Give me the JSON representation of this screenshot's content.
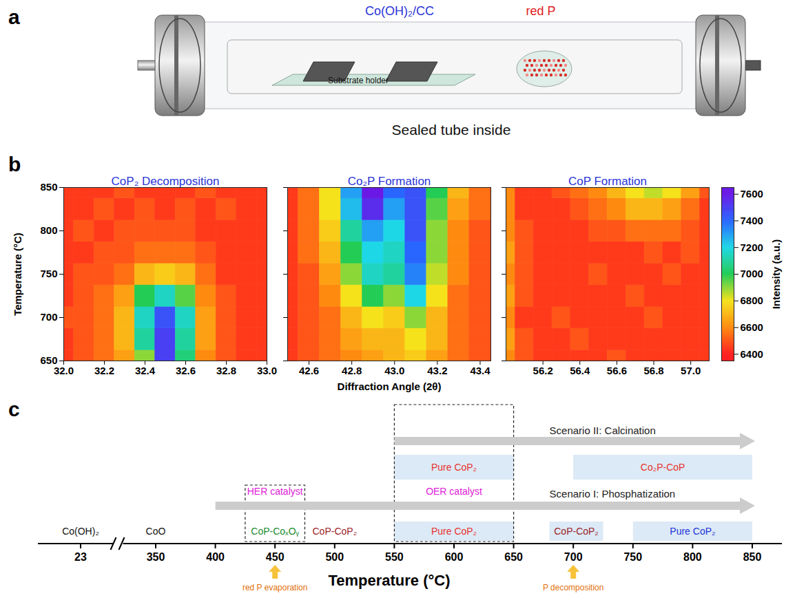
{
  "panel_letters": [
    "a",
    "b",
    "c"
  ],
  "illustration": {
    "sample_label": "Co(OH)₂/CC",
    "source_label": "red P",
    "holder_label": "Substrate holder",
    "caption": "Sealed tube inside"
  },
  "chart_data": [
    {
      "type": "heatmap",
      "title": "CoP₂ Decomposition",
      "y_label": "Temperature (°C)",
      "x": [
        32,
        32.1,
        32.2,
        32.3,
        32.4,
        32.5,
        32.6,
        32.7,
        32.8,
        32.9,
        33
      ],
      "y": [
        650,
        675,
        700,
        725,
        750,
        775,
        800,
        825,
        850
      ],
      "values": [
        [
          6450,
          6500,
          6550,
          6650,
          6900,
          7500,
          7050,
          6600,
          6500,
          6450,
          6450
        ],
        [
          6450,
          6500,
          6550,
          6700,
          7100,
          7500,
          7100,
          6650,
          6500,
          6450,
          6450
        ],
        [
          6500,
          6500,
          6550,
          6700,
          7150,
          7450,
          7150,
          6650,
          6500,
          6450,
          6450
        ],
        [
          6450,
          6500,
          6550,
          6650,
          7000,
          7150,
          6950,
          6600,
          6500,
          6450,
          6450
        ],
        [
          6450,
          6500,
          6500,
          6550,
          6700,
          6750,
          6700,
          6550,
          6450,
          6450,
          6450
        ],
        [
          6450,
          6450,
          6500,
          6500,
          6550,
          6550,
          6550,
          6500,
          6450,
          6450,
          6450
        ],
        [
          6450,
          6500,
          6450,
          6500,
          6500,
          6500,
          6500,
          6450,
          6450,
          6450,
          6450
        ],
        [
          6450,
          6450,
          6500,
          6450,
          6500,
          6450,
          6500,
          6450,
          6500,
          6450,
          6450
        ],
        [
          6450,
          6450,
          6450,
          6500,
          6450,
          6450,
          6450,
          6500,
          6450,
          6450,
          6450
        ]
      ],
      "xlim": [
        32,
        33
      ],
      "ylim": [
        650,
        850
      ],
      "xticks": [
        {
          "value": 32,
          "label": "32.0"
        },
        32.2,
        32.4,
        32.6,
        32.8,
        {
          "value": 33,
          "label": "33.0"
        }
      ],
      "yticks": [
        650,
        700,
        750,
        800,
        850
      ]
    },
    {
      "type": "heatmap",
      "title": "Co₂P Formation",
      "x_label": "Diffraction Angle (2θ)",
      "tick_labels": "x",
      "x": [
        42.5,
        42.6,
        42.7,
        42.8,
        42.9,
        43,
        43.1,
        43.2,
        43.3,
        43.4,
        43.5
      ],
      "y": [
        650,
        675,
        700,
        725,
        750,
        775,
        800,
        825,
        850
      ],
      "values": [
        [
          6450,
          6500,
          6550,
          6600,
          6650,
          6700,
          6750,
          6650,
          6550,
          6500,
          6450
        ],
        [
          6450,
          6500,
          6550,
          6650,
          6700,
          6700,
          6800,
          6700,
          6550,
          6500,
          6450
        ],
        [
          6450,
          6500,
          6550,
          6700,
          6800,
          6750,
          6900,
          6700,
          6550,
          6500,
          6450
        ],
        [
          6450,
          6500,
          6600,
          6800,
          7000,
          6900,
          7200,
          6800,
          6550,
          6500,
          6450
        ],
        [
          6450,
          6500,
          6650,
          6900,
          7150,
          7100,
          7350,
          6850,
          6600,
          6500,
          6450
        ],
        [
          6450,
          6550,
          6700,
          7000,
          7200,
          7150,
          7400,
          6900,
          6600,
          6500,
          6450
        ],
        [
          6450,
          6550,
          6750,
          7100,
          7300,
          7200,
          7450,
          6900,
          6600,
          6500,
          6450
        ],
        [
          6450,
          6550,
          6800,
          7250,
          7550,
          7300,
          7450,
          6950,
          6650,
          6550,
          6450
        ],
        [
          6450,
          6550,
          6800,
          7300,
          7650,
          7400,
          7450,
          7000,
          6700,
          6550,
          6450
        ]
      ],
      "xlim": [
        42.5,
        43.45
      ],
      "ylim": [
        650,
        850
      ],
      "xticks": [
        42.6,
        42.8,
        {
          "value": 43,
          "label": "43.0"
        },
        43.2,
        43.4
      ],
      "yticks": [
        650,
        700,
        750,
        800,
        850
      ]
    },
    {
      "type": "heatmap",
      "title": "CoP Formation",
      "tick_labels": "x",
      "x": [
        56,
        56.1,
        56.2,
        56.3,
        56.4,
        56.5,
        56.6,
        56.7,
        56.8,
        56.9,
        57,
        57.1
      ],
      "y": [
        650,
        675,
        700,
        725,
        750,
        775,
        800,
        825,
        850
      ],
      "values": [
        [
          6600,
          6500,
          6450,
          6450,
          6450,
          6450,
          6500,
          6450,
          6450,
          6450,
          6450,
          6450
        ],
        [
          6650,
          6500,
          6450,
          6450,
          6500,
          6450,
          6450,
          6450,
          6450,
          6450,
          6450,
          6450
        ],
        [
          6600,
          6450,
          6450,
          6500,
          6450,
          6450,
          6450,
          6450,
          6500,
          6450,
          6450,
          6450
        ],
        [
          6650,
          6500,
          6450,
          6450,
          6450,
          6450,
          6450,
          6500,
          6450,
          6450,
          6450,
          6450
        ],
        [
          6600,
          6500,
          6450,
          6450,
          6450,
          6500,
          6450,
          6450,
          6450,
          6500,
          6450,
          6450
        ],
        [
          6650,
          6500,
          6450,
          6450,
          6450,
          6450,
          6450,
          6450,
          6500,
          6450,
          6500,
          6450
        ],
        [
          6600,
          6500,
          6450,
          6450,
          6450,
          6500,
          6500,
          6550,
          6550,
          6550,
          6500,
          6450
        ],
        [
          6600,
          6450,
          6450,
          6450,
          6500,
          6550,
          6600,
          6700,
          6700,
          6650,
          6550,
          6450
        ],
        [
          6600,
          6450,
          6450,
          6500,
          6550,
          6600,
          6700,
          6800,
          6850,
          6800,
          6650,
          6500
        ]
      ],
      "xlim": [
        56,
        57.1
      ],
      "ylim": [
        650,
        850
      ],
      "xticks": [
        56.2,
        56.4,
        56.6,
        56.8,
        {
          "value": 57,
          "label": "57.0"
        }
      ],
      "yticks": [
        650,
        700,
        750,
        800,
        850
      ]
    }
  ],
  "colorbar": {
    "label": "Intensity (a.u.)",
    "range": [
      6350,
      7650
    ],
    "ticks": [
      6400,
      6600,
      6800,
      7000,
      7200,
      7400,
      7600
    ]
  },
  "timeline": {
    "axis_label": "Temperature (°C)",
    "ticks": [
      23,
      350,
      400,
      450,
      500,
      550,
      600,
      650,
      700,
      750,
      800,
      850
    ],
    "break_after": 23,
    "start_labels": [
      {
        "at": 23,
        "label": "Co(OH)₂"
      },
      {
        "at": 350,
        "label": "CoO"
      }
    ],
    "events": [
      {
        "at": 450,
        "label": "red P evaporation"
      },
      {
        "at": 700,
        "label": "P decomposition"
      }
    ],
    "scenarios": [
      {
        "name": "Scenario II: Calcination",
        "from": 550,
        "to": 850,
        "phases": [
          {
            "from": 550,
            "to": 650,
            "label": "Pure CoP₂",
            "color": "#e8312b",
            "shaded": true
          },
          {
            "from": 700,
            "to": 850,
            "label": "Co₂P-CoP",
            "color": "#e8312b",
            "shaded": true
          }
        ]
      },
      {
        "name": "Scenario I: Phosphatization",
        "from": 400,
        "to": 850,
        "phases": [
          {
            "from": 425,
            "to": 475,
            "label": "CoP-CoₓOᵧ",
            "color": "#1a8a2e",
            "shaded": false
          },
          {
            "from": 475,
            "to": 525,
            "label": "CoP-CoP₂",
            "color": "#9b2226",
            "shaded": false
          },
          {
            "from": 550,
            "to": 650,
            "label": "Pure CoP₂",
            "color": "#e8312b",
            "shaded": true
          },
          {
            "from": 680,
            "to": 725,
            "label": "CoP-CoP₂",
            "color": "#9b2226",
            "shaded": true
          },
          {
            "from": 750,
            "to": 850,
            "label": "Pure CoP₂",
            "color": "#2233d6",
            "shaded": true
          }
        ]
      }
    ],
    "catalysts": [
      {
        "label": "HER catalyst",
        "from": 425,
        "to": 475
      },
      {
        "label": "OER catalyst",
        "from": 550,
        "to": 650
      }
    ]
  }
}
